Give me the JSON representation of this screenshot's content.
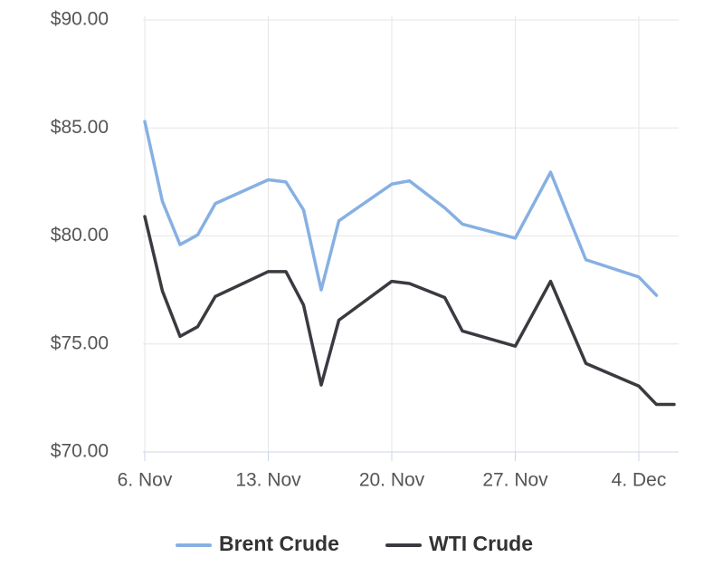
{
  "chart_data": {
    "type": "line",
    "x": [
      "6. Nov",
      "7. Nov",
      "8. Nov",
      "9. Nov",
      "10. Nov",
      "13. Nov",
      "14. Nov",
      "15. Nov",
      "16. Nov",
      "17. Nov",
      "20. Nov",
      "21. Nov",
      "23. Nov",
      "24. Nov",
      "27. Nov",
      "29. Nov",
      "1. Dec",
      "4. Dec",
      "5. Dec",
      "6. Dec"
    ],
    "series": [
      {
        "name": "Brent Crude",
        "color": "#86b0e3",
        "values": [
          85.3,
          81.6,
          79.6,
          80.05,
          81.5,
          82.6,
          82.5,
          81.2,
          77.5,
          80.7,
          82.4,
          82.55,
          81.3,
          80.55,
          79.9,
          82.95,
          78.9,
          78.1,
          77.25,
          null
        ]
      },
      {
        "name": "WTI Crude",
        "color": "#3a3a40",
        "values": [
          80.9,
          77.45,
          75.35,
          75.8,
          77.2,
          78.35,
          78.35,
          76.8,
          73.1,
          76.1,
          77.9,
          77.8,
          77.15,
          75.6,
          74.9,
          77.9,
          74.1,
          73.05,
          72.2,
          72.2
        ]
      }
    ],
    "xlim": [
      "6. Nov",
      "6. Dec"
    ],
    "xticks": [
      "6. Nov",
      "13. Nov",
      "20. Nov",
      "27. Nov",
      "4. Dec"
    ],
    "ylim": [
      70,
      90
    ],
    "yticks": [
      {
        "value": 70,
        "label": "$70.00"
      },
      {
        "value": 75,
        "label": "$75.00"
      },
      {
        "value": 80,
        "label": "$80.00"
      },
      {
        "value": 85,
        "label": "$85.00"
      },
      {
        "value": 90,
        "label": "$90.00"
      }
    ],
    "grid": true,
    "legend": "bottom"
  }
}
